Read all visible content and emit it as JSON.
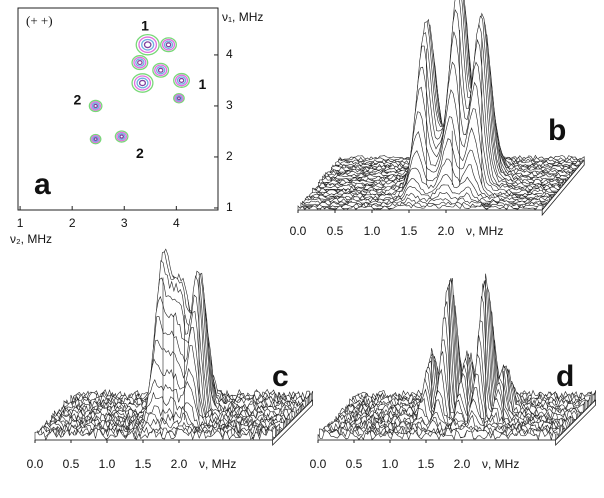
{
  "chart_data": [
    {
      "type": "contour",
      "panel_label": "a",
      "annotation": "(+ +)",
      "xlabel": "ν₂, MHz",
      "ylabel": "ν₁, MHz",
      "xlim": [
        0.96,
        4.8
      ],
      "ylim": [
        0.96,
        4.92
      ],
      "xticks": [
        1,
        2,
        3,
        4
      ],
      "yticks": [
        1,
        2,
        3,
        4
      ],
      "contour_colors": [
        "#78d878",
        "#e070e0",
        "#70b0e0",
        "#8040a0"
      ],
      "spots": {
        "x": [
          3.45,
          3.85,
          3.3,
          3.35,
          3.7,
          4.1,
          4.05,
          2.45,
          2.45,
          2.95
        ],
        "y": [
          4.2,
          4.2,
          3.85,
          3.45,
          3.7,
          3.5,
          3.15,
          3.0,
          2.35,
          2.4
        ],
        "size": [
          0.22,
          0.15,
          0.15,
          0.2,
          0.15,
          0.15,
          0.1,
          0.12,
          0.1,
          0.12
        ]
      },
      "spot_labels": [
        {
          "text": "1",
          "x": 3.4,
          "y": 4.55
        },
        {
          "text": "1",
          "x": 4.5,
          "y": 3.4
        },
        {
          "text": "2",
          "x": 2.1,
          "y": 3.1
        },
        {
          "text": "2",
          "x": 3.3,
          "y": 2.05
        }
      ]
    },
    {
      "type": "surface",
      "panel_label": "b",
      "xlabel": "ν, MHz",
      "xlim": [
        0,
        3.3
      ],
      "xticks": [
        {
          "value": 0,
          "label": "0.0"
        },
        0.5,
        {
          "value": 1,
          "label": "1.0"
        },
        1.5,
        {
          "value": 2,
          "label": "2.0"
        }
      ],
      "peaks": {
        "x": [
          1.45,
          1.9,
          2.2,
          1.8
        ],
        "height": [
          0.88,
          1.0,
          0.95,
          0.35
        ],
        "width": [
          0.08,
          0.08,
          0.08,
          0.3
        ]
      }
    },
    {
      "type": "surface",
      "panel_label": "c",
      "xlabel": "ν, MHz",
      "xlim": [
        0,
        3.3
      ],
      "xticks": [
        {
          "value": 0,
          "label": "0.0"
        },
        0.5,
        {
          "value": 1,
          "label": "1.0"
        },
        1.5,
        {
          "value": 2,
          "label": "2.0"
        }
      ],
      "peaks": {
        "x": [
          1.5,
          1.65,
          1.8,
          2.0
        ],
        "height": [
          0.95,
          0.7,
          0.7,
          0.95
        ],
        "width": [
          0.07,
          0.08,
          0.08,
          0.07
        ]
      }
    },
    {
      "type": "surface",
      "panel_label": "d",
      "xlabel": "ν, MHz",
      "xlim": [
        0,
        3.3
      ],
      "xticks": [
        {
          "value": 0,
          "label": "0.0"
        },
        0.5,
        {
          "value": 1,
          "label": "1.0"
        },
        1.5,
        {
          "value": 2,
          "label": "2.0"
        }
      ],
      "peaks": {
        "x": [
          1.3,
          1.55,
          1.8,
          2.05,
          2.3
        ],
        "height": [
          0.45,
          1.0,
          0.45,
          1.0,
          0.35
        ],
        "width": [
          0.05,
          0.05,
          0.05,
          0.05,
          0.05
        ]
      }
    }
  ]
}
